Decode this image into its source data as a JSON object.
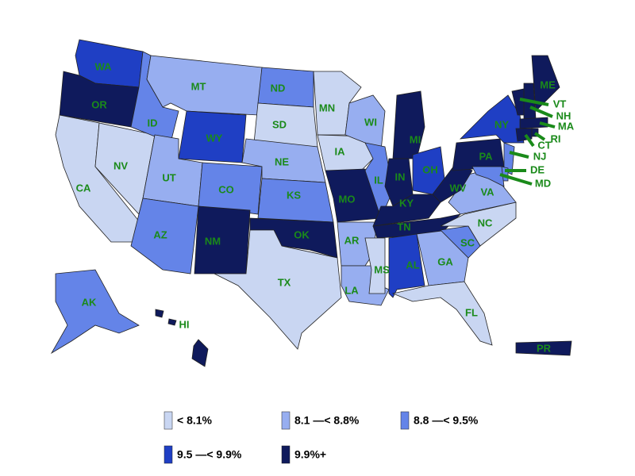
{
  "legend": [
    {
      "label": "< 8.1%",
      "color": "#c9d6f2"
    },
    {
      "label": "8.1 —< 8.8%",
      "color": "#97aef0"
    },
    {
      "label": "8.8 —< 9.5%",
      "color": "#6484e8"
    },
    {
      "label": "9.5 —< 9.9%",
      "color": "#1f3fc4"
    },
    {
      "label": "9.9%+",
      "color": "#0f1a5c"
    }
  ],
  "states": [
    {
      "label": "WA",
      "color": "#1f3fc4"
    },
    {
      "label": "OR",
      "color": "#0f1a5c"
    },
    {
      "label": "CA",
      "color": "#c9d6f2"
    },
    {
      "label": "NV",
      "color": "#c9d6f2"
    },
    {
      "label": "ID",
      "color": "#6484e8"
    },
    {
      "label": "MT",
      "color": "#97aef0"
    },
    {
      "label": "WY",
      "color": "#1f3fc4"
    },
    {
      "label": "UT",
      "color": "#97aef0"
    },
    {
      "label": "CO",
      "color": "#6484e8"
    },
    {
      "label": "AZ",
      "color": "#6484e8"
    },
    {
      "label": "NM",
      "color": "#0f1a5c"
    },
    {
      "label": "ND",
      "color": "#6484e8"
    },
    {
      "label": "SD",
      "color": "#c9d6f2"
    },
    {
      "label": "NE",
      "color": "#97aef0"
    },
    {
      "label": "KS",
      "color": "#6484e8"
    },
    {
      "label": "OK",
      "color": "#0f1a5c"
    },
    {
      "label": "TX",
      "color": "#c9d6f2"
    },
    {
      "label": "MN",
      "color": "#c9d6f2"
    },
    {
      "label": "IA",
      "color": "#c9d6f2"
    },
    {
      "label": "MO",
      "color": "#0f1a5c"
    },
    {
      "label": "AR",
      "color": "#97aef0"
    },
    {
      "label": "LA",
      "color": "#97aef0"
    },
    {
      "label": "WI",
      "color": "#97aef0"
    },
    {
      "label": "IL",
      "color": "#6484e8"
    },
    {
      "label": "MI",
      "color": "#0f1a5c"
    },
    {
      "label": "IN",
      "color": "#0f1a5c"
    },
    {
      "label": "OH",
      "color": "#1f3fc4"
    },
    {
      "label": "KY",
      "color": "#0f1a5c"
    },
    {
      "label": "TN",
      "color": "#0f1a5c"
    },
    {
      "label": "MS",
      "color": "#c9d6f2"
    },
    {
      "label": "AL",
      "color": "#1f3fc4"
    },
    {
      "label": "GA",
      "color": "#97aef0"
    },
    {
      "label": "FL",
      "color": "#c9d6f2"
    },
    {
      "label": "SC",
      "color": "#6484e8"
    },
    {
      "label": "NC",
      "color": "#c9d6f2"
    },
    {
      "label": "VA",
      "color": "#97aef0"
    },
    {
      "label": "WV",
      "color": "#0f1a5c"
    },
    {
      "label": "PA",
      "color": "#0f1a5c"
    },
    {
      "label": "NY",
      "color": "#1f3fc4"
    },
    {
      "label": "ME",
      "color": "#0f1a5c"
    },
    {
      "label": "VT",
      "color": "#0f1a5c"
    },
    {
      "label": "NH",
      "color": "#0f1a5c"
    },
    {
      "label": "MA",
      "color": "#0f1a5c"
    },
    {
      "label": "RI",
      "color": "#0f1a5c"
    },
    {
      "label": "CT",
      "color": "#0f1a5c"
    },
    {
      "label": "NJ",
      "color": "#6484e8"
    },
    {
      "label": "DE",
      "color": "#6484e8"
    },
    {
      "label": "MD",
      "color": "#6484e8"
    },
    {
      "label": "AK",
      "color": "#6484e8"
    },
    {
      "label": "HI",
      "color": "#0f1a5c"
    },
    {
      "label": "PR",
      "color": "#0f1a5c"
    }
  ]
}
